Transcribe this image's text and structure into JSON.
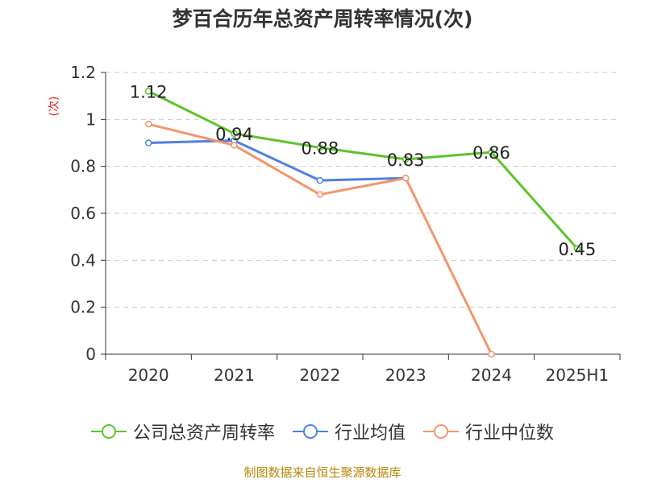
{
  "title": "梦百合历年总资产周转率情况(次)",
  "unit_label": "(次)",
  "source": "制图数据来自恒生聚源数据库",
  "colors": {
    "company": "#5cc42a",
    "industry_avg": "#4f80e0",
    "industry_median": "#f4956a",
    "grid": "#cccccc",
    "axis": "#333333"
  },
  "legend": [
    {
      "label": "公司总资产周转率",
      "color": "#5cc42a"
    },
    {
      "label": "行业均值",
      "color": "#4f80e0"
    },
    {
      "label": "行业中位数",
      "color": "#f4956a"
    }
  ],
  "chart_data": {
    "type": "line",
    "title": "梦百合历年总资产周转率情况(次)",
    "ylabel": "(次)",
    "xlabel": "",
    "categories": [
      "2020",
      "2021",
      "2022",
      "2023",
      "2024",
      "2025H1"
    ],
    "y_ticks": [
      "0",
      "0.2",
      "0.4",
      "0.6",
      "0.8",
      "1",
      "1.2"
    ],
    "ylim": [
      0,
      1.2
    ],
    "grid": true,
    "legend_position": "bottom",
    "series": [
      {
        "name": "公司总资产周转率",
        "values": [
          1.12,
          0.94,
          0.88,
          0.83,
          0.86,
          0.45
        ],
        "labels": [
          "1.12",
          "0.94",
          "0.88",
          "0.83",
          "0.86",
          "0.45"
        ]
      },
      {
        "name": "行业均值",
        "values": [
          0.9,
          0.91,
          0.74,
          0.75,
          null,
          null
        ]
      },
      {
        "name": "行业中位数",
        "values": [
          0.98,
          0.89,
          0.68,
          0.75,
          0.0,
          null
        ]
      }
    ]
  }
}
